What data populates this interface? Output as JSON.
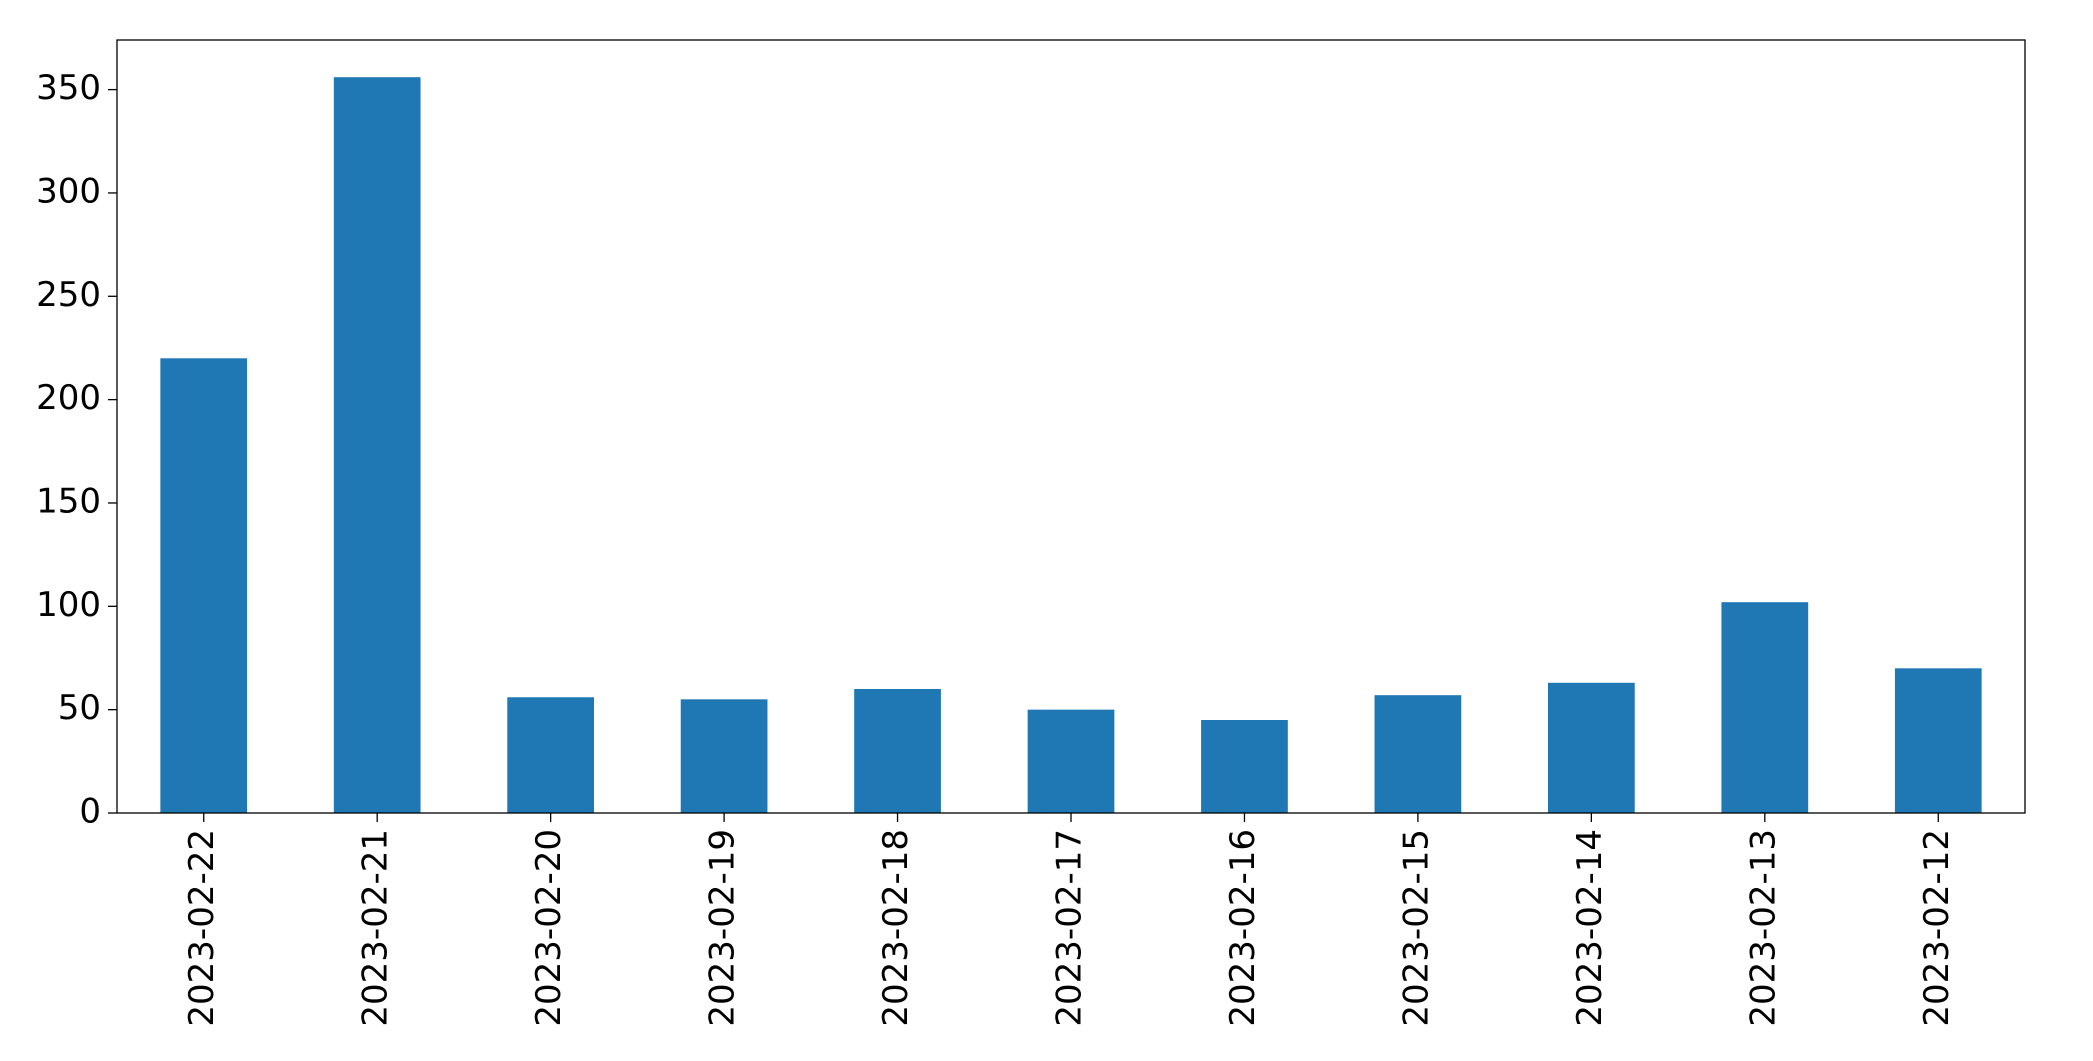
{
  "chart_data": {
    "type": "bar",
    "categories": [
      "2023-02-22",
      "2023-02-21",
      "2023-02-20",
      "2023-02-19",
      "2023-02-18",
      "2023-02-17",
      "2023-02-16",
      "2023-02-15",
      "2023-02-14",
      "2023-02-13",
      "2023-02-12"
    ],
    "values": [
      220,
      356,
      56,
      55,
      60,
      50,
      45,
      57,
      63,
      102,
      70
    ],
    "color": "#1f77b4",
    "ylim": [
      0,
      374
    ],
    "yticks": [
      0,
      50,
      100,
      150,
      200,
      250,
      300,
      350
    ],
    "grid": false
  }
}
